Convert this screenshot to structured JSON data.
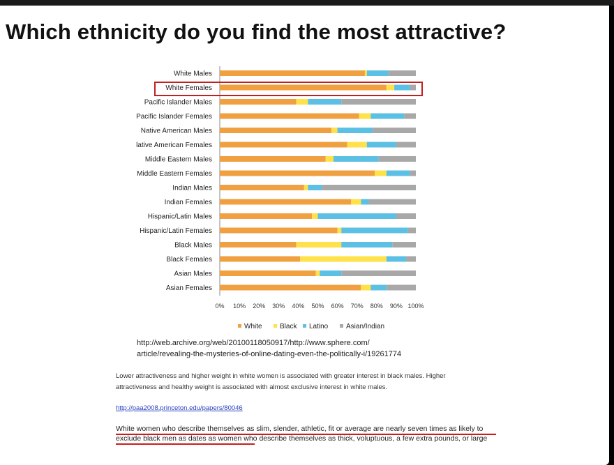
{
  "title": "Which ethnicity do you find the most attractive?",
  "chart_data": {
    "type": "bar",
    "orientation": "horizontal",
    "stacked": true,
    "categories": [
      "White Males",
      "White Females",
      "Pacific Islander Males",
      "Pacific Islander Females",
      "Native American Males",
      "lative American Females",
      "Middle Eastern Males",
      "Middle Eastern Females",
      "Indian Males",
      "Indian Females",
      "Hispanic/Latin Males",
      "Hispanic/Latin Females",
      "Black Males",
      "Black Females",
      "Asian Males",
      "Asian Females"
    ],
    "series": [
      {
        "name": "White",
        "color": "#f0a040",
        "values": [
          74,
          85,
          39,
          71,
          57,
          65,
          54,
          79,
          43,
          67,
          47,
          60,
          39,
          41,
          49,
          72
        ]
      },
      {
        "name": "Black",
        "color": "#ffe14a",
        "values": [
          1,
          4,
          6,
          6,
          3,
          10,
          4,
          6,
          2,
          5,
          3,
          2,
          23,
          44,
          2,
          5
        ]
      },
      {
        "name": "Latino",
        "color": "#5bc0e3",
        "values": [
          11,
          8,
          17,
          17,
          18,
          15,
          23,
          12,
          7,
          4,
          40,
          34,
          26,
          10,
          11,
          8
        ]
      },
      {
        "name": "Asian/Indian",
        "color": "#a8a8a8",
        "values": [
          14,
          3,
          38,
          6,
          22,
          10,
          19,
          3,
          48,
          24,
          10,
          4,
          12,
          5,
          38,
          15
        ]
      }
    ],
    "xlim": [
      0,
      100
    ],
    "x_ticks": [
      "0%",
      "10%",
      "20%",
      "30%",
      "40%",
      "50%",
      "60%",
      "70%",
      "80%",
      "90%",
      "100%"
    ],
    "legend": "bottom",
    "highlighted_category": "White Females"
  },
  "source_url": "http://web.archive.org/web/20100118050917/http://www.sphere.com/article/revealing-the-mysteries-of-online-dating-even-the-politically-i/19261774",
  "source_url_line1": "http://web.archive.org/web/20100118050917/http://www.sphere.com/",
  "source_url_line2": "article/revealing-the-mysteries-of-online-dating-even-the-politically-i/19261774",
  "quote1": "Lower attractiveness and higher weight in white women is associated with greater interest in black males. Higher attractiveness and healthy weight is associated with almost exclusive interest in white males.",
  "link": "http://paa2008.princeton.edu/papers/80046",
  "quote2": "White women who describe themselves as slim, slender, athletic, fit or average are nearly seven times as likely to exclude black men as dates as women who describe themselves as thick, voluptuous, a few extra pounds, or large",
  "colors": {
    "highlight": "#c02020",
    "underline": "#c81e1e",
    "link": "#2a3fbf"
  }
}
